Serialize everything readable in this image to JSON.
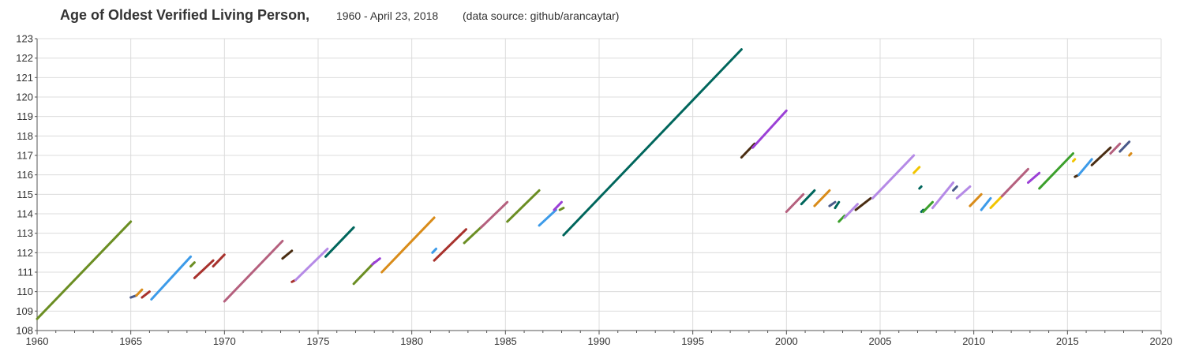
{
  "title": "Age of Oldest Verified Living Person,",
  "subtitle": "1960 - April 23, 2018",
  "source": "(data source: github/arancaytar)",
  "chart_data": {
    "type": "line",
    "title": "Age of Oldest Verified Living Person,",
    "subtitle": "1960 - April 23, 2018",
    "source": "(data source: github/arancaytar)",
    "xlabel": "",
    "ylabel": "",
    "xlim": [
      1960,
      2020
    ],
    "ylim": [
      108,
      123
    ],
    "x_ticks": [
      1960,
      1965,
      1970,
      1975,
      1980,
      1985,
      1990,
      1995,
      2000,
      2005,
      2010,
      2015,
      2020
    ],
    "y_ticks": [
      108,
      109,
      110,
      111,
      112,
      113,
      114,
      115,
      116,
      117,
      118,
      119,
      120,
      121,
      122,
      123
    ],
    "grid": true,
    "legend": "none",
    "series": [
      {
        "x": [
          1960.0,
          1965.0
        ],
        "y": [
          108.6,
          113.6
        ],
        "color": "#6b8e23"
      },
      {
        "x": [
          1965.0,
          1965.3
        ],
        "y": [
          109.7,
          109.8
        ],
        "color": "#4a5a8a"
      },
      {
        "x": [
          1965.3,
          1965.6
        ],
        "y": [
          109.8,
          110.1
        ],
        "color": "#d98c1a"
      },
      {
        "x": [
          1965.6,
          1966.0
        ],
        "y": [
          109.7,
          110.0
        ],
        "color": "#a8322d"
      },
      {
        "x": [
          1966.1,
          1968.2
        ],
        "y": [
          109.6,
          111.8
        ],
        "color": "#3d9be9"
      },
      {
        "x": [
          1968.2,
          1968.4
        ],
        "y": [
          111.3,
          111.5
        ],
        "color": "#6b8e23"
      },
      {
        "x": [
          1968.4,
          1969.4
        ],
        "y": [
          110.7,
          111.6
        ],
        "color": "#a8322d"
      },
      {
        "x": [
          1969.4,
          1970.0
        ],
        "y": [
          111.3,
          111.9
        ],
        "color": "#a8322d"
      },
      {
        "x": [
          1970.0,
          1973.1
        ],
        "y": [
          109.5,
          112.6
        ],
        "color": "#b5607e"
      },
      {
        "x": [
          1973.1,
          1973.6
        ],
        "y": [
          111.7,
          112.1
        ],
        "color": "#4a2d12"
      },
      {
        "x": [
          1973.6,
          1973.8
        ],
        "y": [
          110.5,
          110.6
        ],
        "color": "#a8322d"
      },
      {
        "x": [
          1973.8,
          1975.5
        ],
        "y": [
          110.6,
          112.2
        ],
        "color": "#b58ae6"
      },
      {
        "x": [
          1975.4,
          1976.9
        ],
        "y": [
          111.8,
          113.3
        ],
        "color": "#00665c"
      },
      {
        "x": [
          1976.9,
          1978.0
        ],
        "y": [
          110.4,
          111.5
        ],
        "color": "#6b8e23"
      },
      {
        "x": [
          1977.9,
          1978.3
        ],
        "y": [
          111.4,
          111.7
        ],
        "color": "#9b40d6"
      },
      {
        "x": [
          1978.4,
          1981.2
        ],
        "y": [
          111.0,
          113.8
        ],
        "color": "#d98c1a"
      },
      {
        "x": [
          1981.1,
          1981.3
        ],
        "y": [
          112.0,
          112.2
        ],
        "color": "#3d9be9"
      },
      {
        "x": [
          1981.2,
          1982.9
        ],
        "y": [
          111.6,
          113.2
        ],
        "color": "#a8322d"
      },
      {
        "x": [
          1982.8,
          1983.8
        ],
        "y": [
          112.5,
          113.4
        ],
        "color": "#6b8e23"
      },
      {
        "x": [
          1983.7,
          1985.1
        ],
        "y": [
          113.3,
          114.6
        ],
        "color": "#b5607e"
      },
      {
        "x": [
          1985.1,
          1986.8
        ],
        "y": [
          113.6,
          115.2
        ],
        "color": "#6b8e23"
      },
      {
        "x": [
          1986.8,
          1987.7
        ],
        "y": [
          113.4,
          114.2
        ],
        "color": "#3d9be9"
      },
      {
        "x": [
          1987.6,
          1988.0
        ],
        "y": [
          114.2,
          114.6
        ],
        "color": "#9b40d6"
      },
      {
        "x": [
          1987.9,
          1988.1
        ],
        "y": [
          114.2,
          114.3
        ],
        "color": "#6b8e23"
      },
      {
        "x": [
          1988.1,
          1997.6
        ],
        "y": [
          112.9,
          122.45
        ],
        "color": "#00665c"
      },
      {
        "x": [
          1997.6,
          1998.3
        ],
        "y": [
          116.9,
          117.6
        ],
        "color": "#4a2d12"
      },
      {
        "x": [
          1998.2,
          2000.0
        ],
        "y": [
          117.4,
          119.3
        ],
        "color": "#9b40d6"
      },
      {
        "x": [
          2000.0,
          2000.9
        ],
        "y": [
          114.1,
          115.0
        ],
        "color": "#b5607e"
      },
      {
        "x": [
          2000.8,
          2001.5
        ],
        "y": [
          114.5,
          115.2
        ],
        "color": "#00665c"
      },
      {
        "x": [
          2001.5,
          2002.3
        ],
        "y": [
          114.4,
          115.2
        ],
        "color": "#d98c1a"
      },
      {
        "x": [
          2002.3,
          2002.6
        ],
        "y": [
          114.4,
          114.6
        ],
        "color": "#4a5a8a"
      },
      {
        "x": [
          2002.6,
          2002.8
        ],
        "y": [
          114.3,
          114.6
        ],
        "color": "#00665c"
      },
      {
        "x": [
          2002.8,
          2003.1
        ],
        "y": [
          113.6,
          113.9
        ],
        "color": "#3ca02c"
      },
      {
        "x": [
          2003.1,
          2003.8
        ],
        "y": [
          113.8,
          114.5
        ],
        "color": "#b58ae6"
      },
      {
        "x": [
          2003.7,
          2004.5
        ],
        "y": [
          114.2,
          114.8
        ],
        "color": "#4a2d12"
      },
      {
        "x": [
          2004.6,
          2006.8
        ],
        "y": [
          114.8,
          117.0
        ],
        "color": "#b58ae6"
      },
      {
        "x": [
          2006.8,
          2007.1
        ],
        "y": [
          116.1,
          116.4
        ],
        "color": "#f2c500"
      },
      {
        "x": [
          2007.1,
          2007.2
        ],
        "y": [
          115.3,
          115.4
        ],
        "color": "#00665c"
      },
      {
        "x": [
          2007.2,
          2007.3
        ],
        "y": [
          114.1,
          114.2
        ],
        "color": "#00665c"
      },
      {
        "x": [
          2007.3,
          2007.8
        ],
        "y": [
          114.1,
          114.6
        ],
        "color": "#3ca02c"
      },
      {
        "x": [
          2007.8,
          2008.9
        ],
        "y": [
          114.3,
          115.6
        ],
        "color": "#b58ae6"
      },
      {
        "x": [
          2008.9,
          2009.1
        ],
        "y": [
          115.2,
          115.4
        ],
        "color": "#4a5a8a"
      },
      {
        "x": [
          2009.1,
          2009.8
        ],
        "y": [
          114.8,
          115.4
        ],
        "color": "#b58ae6"
      },
      {
        "x": [
          2009.8,
          2010.4
        ],
        "y": [
          114.4,
          115.0
        ],
        "color": "#d98c1a"
      },
      {
        "x": [
          2010.4,
          2010.9
        ],
        "y": [
          114.2,
          114.8
        ],
        "color": "#3d9be9"
      },
      {
        "x": [
          2010.9,
          2011.5
        ],
        "y": [
          114.3,
          114.9
        ],
        "color": "#f2c500"
      },
      {
        "x": [
          2011.5,
          2012.9
        ],
        "y": [
          114.9,
          116.3
        ],
        "color": "#b5607e"
      },
      {
        "x": [
          2012.9,
          2013.5
        ],
        "y": [
          115.6,
          116.1
        ],
        "color": "#9b40d6"
      },
      {
        "x": [
          2013.5,
          2015.3
        ],
        "y": [
          115.3,
          117.1
        ],
        "color": "#3ca02c"
      },
      {
        "x": [
          2015.3,
          2015.4
        ],
        "y": [
          116.7,
          116.8
        ],
        "color": "#f2c500"
      },
      {
        "x": [
          2015.4,
          2015.6
        ],
        "y": [
          115.9,
          116.0
        ],
        "color": "#4a2d12"
      },
      {
        "x": [
          2015.6,
          2016.3
        ],
        "y": [
          116.0,
          116.8
        ],
        "color": "#3d9be9"
      },
      {
        "x": [
          2016.3,
          2017.3
        ],
        "y": [
          116.5,
          117.4
        ],
        "color": "#4a2d12"
      },
      {
        "x": [
          2017.3,
          2017.8
        ],
        "y": [
          117.1,
          117.6
        ],
        "color": "#b5607e"
      },
      {
        "x": [
          2017.8,
          2018.3
        ],
        "y": [
          117.2,
          117.7
        ],
        "color": "#4a5a8a"
      },
      {
        "x": [
          2018.3,
          2018.4
        ],
        "y": [
          117.0,
          117.1
        ],
        "color": "#d98c1a"
      }
    ]
  }
}
